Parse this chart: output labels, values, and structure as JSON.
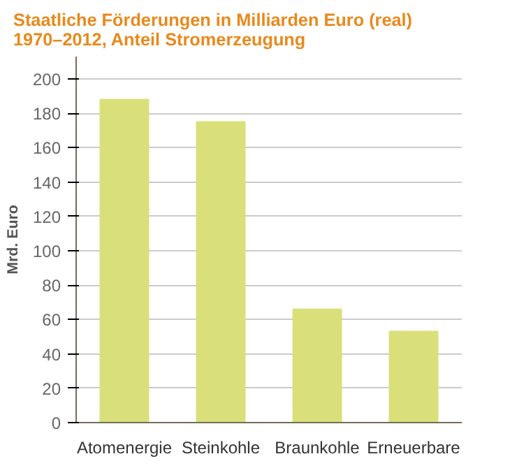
{
  "chart_data": {
    "type": "bar",
    "title": "Staatliche Förderungen in Milliarden Euro (real) 1970–2012, Anteil Stromerzeugung",
    "ylabel": "Mrd. Euro",
    "categories": [
      "Atomenergie",
      "Steinkohle",
      "Braunkohle",
      "Erneuerbare"
    ],
    "values": [
      188,
      175,
      66,
      53
    ],
    "color": "#d9e07a",
    "ylim": [
      0,
      213
    ],
    "yticks": [
      0,
      20,
      40,
      60,
      80,
      100,
      120,
      140,
      160,
      180,
      200
    ],
    "grid": "y"
  }
}
